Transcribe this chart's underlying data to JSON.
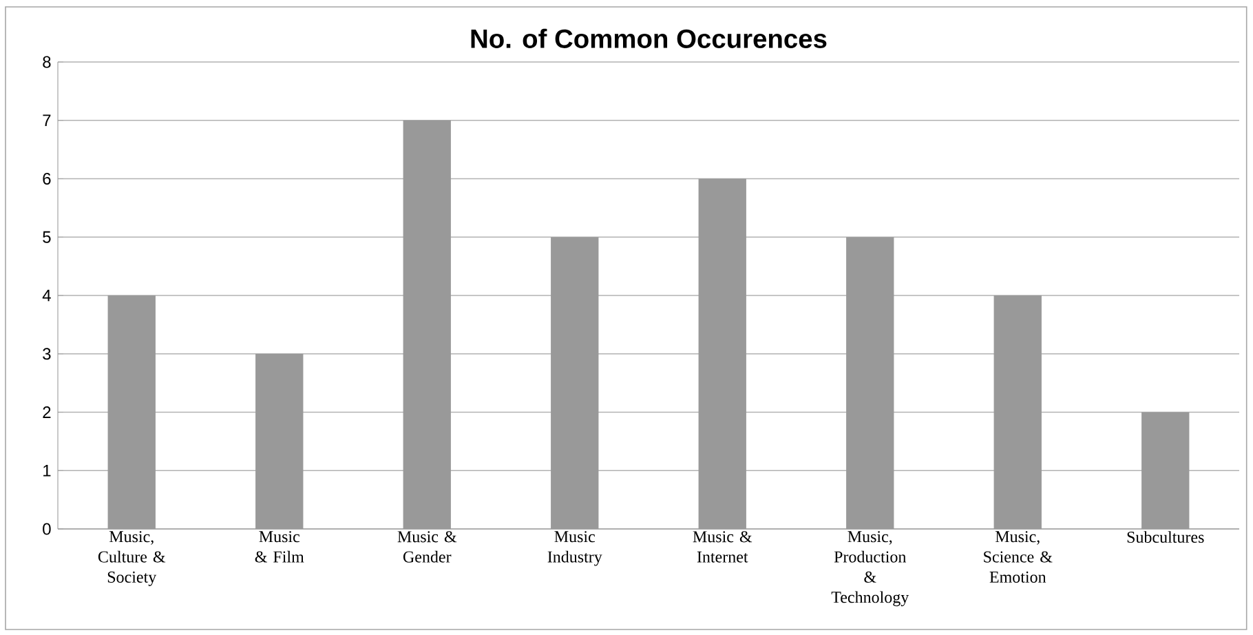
{
  "chart_data": {
    "type": "bar",
    "title": "No. of Common Occurences",
    "categories": [
      "Music, Culture & Society",
      "Music & Film",
      "Music & Gender",
      "Music Industry",
      "Music & Internet",
      "Music, Production & Technology",
      "Music, Science & Emotion",
      "Subcultures"
    ],
    "values": [
      4,
      3,
      7,
      5,
      6,
      5,
      4,
      2
    ],
    "color": "#999999",
    "ylim": [
      0,
      8
    ],
    "yticks": [
      0,
      1,
      2,
      3,
      4,
      5,
      6,
      7,
      8
    ],
    "grid": "y"
  }
}
